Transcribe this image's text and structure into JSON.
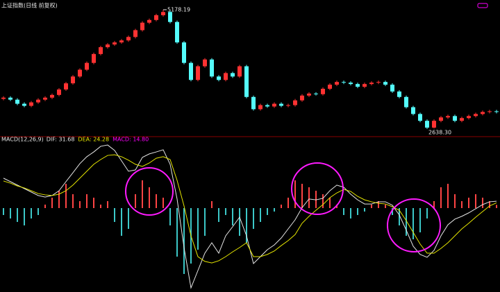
{
  "chart_data": [
    {
      "type": "candlestick",
      "title": "上证指数(日线 前复权)",
      "up_color": "#ff3232",
      "down_color": "#54fcfc",
      "high_label": "5178.19",
      "low_label": "2638.30",
      "candles": [
        [
          3280,
          3336,
          3250,
          3306
        ],
        [
          3306,
          3336,
          3233,
          3263
        ],
        [
          3263,
          3293,
          3146,
          3176
        ],
        [
          3176,
          3206,
          3102,
          3132
        ],
        [
          3132,
          3235,
          3102,
          3205
        ],
        [
          3205,
          3293,
          3175,
          3263
        ],
        [
          3263,
          3336,
          3233,
          3306
        ],
        [
          3306,
          3394,
          3276,
          3364
        ],
        [
          3364,
          3510,
          3334,
          3480
        ],
        [
          3480,
          3641,
          3450,
          3611
        ],
        [
          3611,
          3786,
          3581,
          3756
        ],
        [
          3756,
          3931,
          3726,
          3901
        ],
        [
          3901,
          4076,
          3871,
          4046
        ],
        [
          4046,
          4265,
          4016,
          4235
        ],
        [
          4235,
          4410,
          4205,
          4380
        ],
        [
          4380,
          4468,
          4350,
          4438
        ],
        [
          4438,
          4512,
          4408,
          4482
        ],
        [
          4482,
          4555,
          4452,
          4525
        ],
        [
          4525,
          4628,
          4495,
          4598
        ],
        [
          4598,
          4773,
          4568,
          4743
        ],
        [
          4743,
          4932,
          4713,
          4902
        ],
        [
          4902,
          4990,
          4872,
          4960
        ],
        [
          4960,
          5092,
          4930,
          5062
        ],
        [
          5062,
          5178.19,
          5032,
          5130
        ],
        [
          5130,
          5160,
          4887,
          4917
        ],
        [
          4917,
          4947,
          4452,
          4482
        ],
        [
          4482,
          4512,
          4016,
          4046
        ],
        [
          4046,
          4076,
          3653,
          3683
        ],
        [
          3683,
          4004,
          3653,
          3974
        ],
        [
          3974,
          4149,
          3944,
          4119
        ],
        [
          4119,
          4149,
          3726,
          3756
        ],
        [
          3756,
          3786,
          3653,
          3683
        ],
        [
          3683,
          3859,
          3653,
          3829
        ],
        [
          3829,
          3859,
          3726,
          3756
        ],
        [
          3756,
          4004,
          3726,
          3974
        ],
        [
          3974,
          4004,
          3291,
          3321
        ],
        [
          3321,
          3351,
          3030,
          3060
        ],
        [
          3060,
          3177,
          3030,
          3147
        ],
        [
          3147,
          3177,
          3088,
          3118
        ],
        [
          3118,
          3206,
          3088,
          3176
        ],
        [
          3176,
          3206,
          3102,
          3132
        ],
        [
          3132,
          3177,
          3102,
          3147
        ],
        [
          3147,
          3278,
          3117,
          3248
        ],
        [
          3248,
          3380,
          3218,
          3350
        ],
        [
          3350,
          3423,
          3320,
          3393
        ],
        [
          3393,
          3423,
          3350,
          3380
        ],
        [
          3380,
          3525,
          3350,
          3495
        ],
        [
          3495,
          3612,
          3465,
          3582
        ],
        [
          3582,
          3670,
          3552,
          3640
        ],
        [
          3640,
          3670,
          3595,
          3625
        ],
        [
          3625,
          3655,
          3566,
          3596
        ],
        [
          3596,
          3626,
          3508,
          3538
        ],
        [
          3538,
          3626,
          3508,
          3596
        ],
        [
          3596,
          3655,
          3566,
          3625
        ],
        [
          3625,
          3670,
          3595,
          3640
        ],
        [
          3640,
          3670,
          3552,
          3582
        ],
        [
          3582,
          3612,
          3407,
          3437
        ],
        [
          3437,
          3467,
          3291,
          3321
        ],
        [
          3321,
          3351,
          3073,
          3103
        ],
        [
          3103,
          3133,
          2928,
          2958
        ],
        [
          2958,
          2988,
          2783,
          2813
        ],
        [
          2813,
          2843,
          2638.3,
          2668
        ],
        [
          2668,
          2843,
          2650,
          2813
        ],
        [
          2813,
          2915,
          2783,
          2885
        ],
        [
          2885,
          2944,
          2855,
          2914
        ],
        [
          2914,
          2944,
          2783,
          2813
        ],
        [
          2813,
          2901,
          2783,
          2871
        ],
        [
          2871,
          2944,
          2841,
          2914
        ],
        [
          2914,
          2988,
          2884,
          2958
        ],
        [
          2958,
          3031,
          2928,
          3001
        ],
        [
          3001,
          3046,
          2971,
          3016
        ],
        [
          3016,
          3046,
          2971,
          3001
        ]
      ]
    },
    {
      "type": "macd",
      "title": "MACD(12,26,9)",
      "title_color": "#e6e6e6",
      "series": [
        {
          "type": "line",
          "label": "DIF: 31.68",
          "color": "#e6e6e6",
          "values": [
            138,
            122,
            106,
            90,
            74,
            58,
            51,
            58,
            80,
            122,
            163,
            205,
            237,
            259,
            285,
            291,
            266,
            218,
            170,
            176,
            234,
            250,
            259,
            269,
            202,
            42,
            -182,
            -368,
            -288,
            -208,
            -160,
            -208,
            -128,
            -86,
            -42,
            -128,
            -256,
            -224,
            -192,
            -170,
            -138,
            -96,
            -54,
            2,
            42,
            38,
            45,
            80,
            106,
            96,
            64,
            38,
            19,
            19,
            29,
            29,
            13,
            -32,
            -102,
            -176,
            -214,
            -227,
            -195,
            -128,
            -77,
            -51,
            -38,
            -22,
            -3,
            16,
            29,
            31.68
          ]
        },
        {
          "type": "line",
          "label": "DEA: 24.28",
          "color": "#e6e600",
          "values": [
            125,
            115,
            102,
            93,
            80,
            67,
            61,
            58,
            64,
            80,
            106,
            138,
            170,
            202,
            224,
            243,
            246,
            237,
            221,
            202,
            192,
            208,
            230,
            237,
            224,
            128,
            10,
            -128,
            -224,
            -246,
            -253,
            -243,
            -224,
            -202,
            -182,
            -160,
            -224,
            -224,
            -214,
            -198,
            -173,
            -150,
            -122,
            -70,
            -38,
            -10,
            16,
            48,
            70,
            86,
            77,
            54,
            38,
            29,
            22,
            19,
            6,
            -10,
            -58,
            -112,
            -166,
            -208,
            -208,
            -186,
            -160,
            -128,
            -96,
            -70,
            -42,
            -16,
            10,
            24.28
          ]
        },
        {
          "type": "bar",
          "label": "MACD: 14.80",
          "color": "#ff00ff",
          "up_color": "#ff4444",
          "down_color": "#3cc8c8",
          "values": [
            -32,
            -48,
            -64,
            -80,
            -48,
            -32,
            16,
            48,
            80,
            112,
            64,
            32,
            64,
            48,
            16,
            32,
            -64,
            -128,
            -96,
            64,
            128,
            96,
            64,
            48,
            -80,
            -224,
            -304,
            -256,
            -192,
            -128,
            32,
            -64,
            -32,
            -80,
            -128,
            -160,
            -96,
            -64,
            -32,
            -16,
            16,
            48,
            128,
            112,
            96,
            80,
            64,
            48,
            16,
            -32,
            -48,
            -32,
            -16,
            16,
            32,
            16,
            -32,
            -80,
            -128,
            -144,
            -112,
            -48,
            32,
            96,
            112,
            64,
            32,
            48,
            64,
            48,
            32,
            14.8
          ]
        }
      ]
    }
  ]
}
